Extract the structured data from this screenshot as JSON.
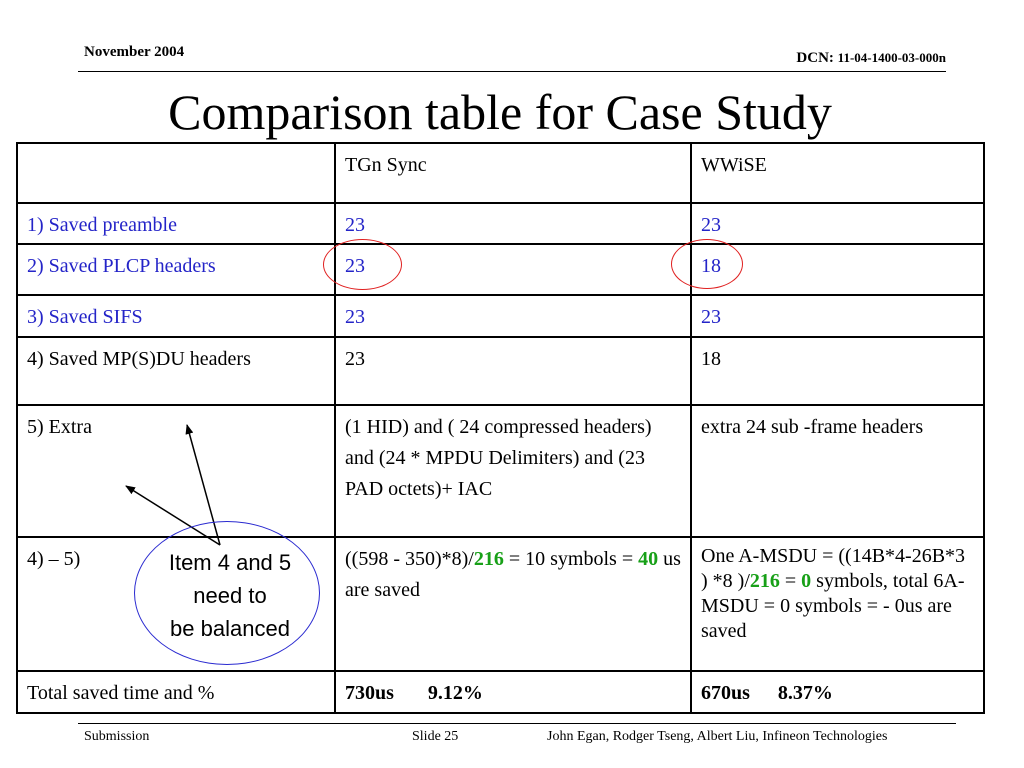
{
  "header": {
    "date": "November 2004",
    "dcn_label": "DCN:",
    "dcn_number": "11-04-1400-03-000n"
  },
  "title": "Comparison table for Case Study",
  "table": {
    "columns": [
      "",
      "TGn Sync",
      "WWiSE"
    ],
    "rows": [
      {
        "label": "1) Saved preamble",
        "tgn": "23",
        "wwise": "23"
      },
      {
        "label": "2) Saved PLCP headers",
        "tgn": "23",
        "wwise": "18"
      },
      {
        "label": "3) Saved SIFS",
        "tgn": "23",
        "wwise": "23"
      },
      {
        "label": "4) Saved MP(S)DU headers",
        "tgn": "23",
        "wwise": "18"
      },
      {
        "label": "5) Extra",
        "tgn": "(1 HID) and ( 24 compressed headers) and (24 * MPDU Delimiters) and (23 PAD octets)+ IAC",
        "wwise": "extra 24 sub -frame headers"
      },
      {
        "label": "4) – 5)",
        "tgn_a": "((598 - 350)*8)/",
        "tgn_b": "216",
        "tgn_c": " = 10 symbols = ",
        "tgn_d": "40",
        "tgn_e": " us are saved",
        "wwise_a": "One A-MSDU = ((14B*4-26B*3 ) *8 )/",
        "wwise_b": "216",
        "wwise_c": " = ",
        "wwise_d": "0",
        "wwise_e": " symbols, total 6A-MSDU = 0 symbols = - 0us are saved"
      },
      {
        "label": "Total saved time and %",
        "tgn_time": "730us",
        "tgn_pct": "9.12%",
        "wwise_time": "670us",
        "wwise_pct": "8.37%"
      }
    ]
  },
  "annotation": {
    "line1": "Item 4 and 5",
    "line2": "need to",
    "line3": "be balanced"
  },
  "footer": {
    "left": "Submission",
    "center": "Slide 25",
    "right": "John Egan, Rodger Tseng, Albert Liu, Infineon Technologies"
  },
  "colors": {
    "blue_text": "#2424c8",
    "green_text": "#18a018",
    "red_circle": "#e02020",
    "blue_circle": "#2a2ad0"
  }
}
